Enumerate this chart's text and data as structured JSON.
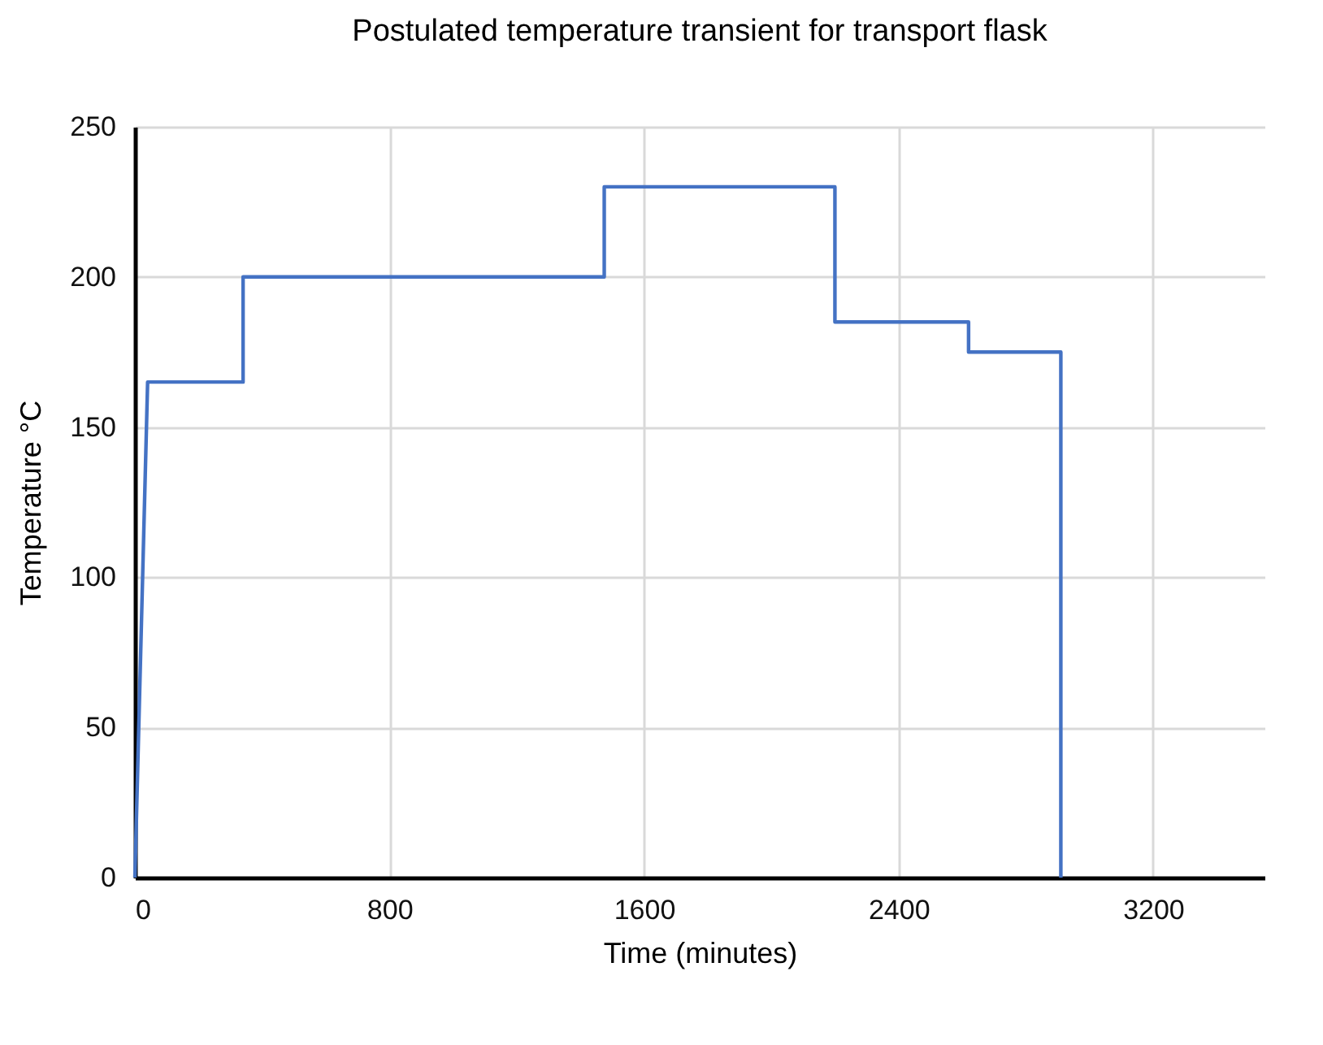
{
  "chart_data": {
    "type": "line",
    "title": "Postulated temperature transient for transport flask",
    "xlabel": "Time (minutes)",
    "ylabel": "Temperature °C",
    "x": [
      0,
      40,
      340,
      340,
      1475,
      1475,
      2200,
      2200,
      2620,
      2620,
      2910,
      2910
    ],
    "series": [
      {
        "color": "#4472c4",
        "values": [
          0,
          165,
          165,
          200,
          200,
          230,
          230,
          185,
          185,
          175,
          175,
          0
        ]
      }
    ],
    "xlim": [
      0,
      3550
    ],
    "xticks": [
      0,
      800,
      1600,
      2400,
      3200
    ],
    "ylim": [
      0,
      250
    ],
    "yticks": [
      0,
      50,
      100,
      150,
      200,
      250
    ],
    "grid": true,
    "marker": "none",
    "line_style": "solid"
  }
}
